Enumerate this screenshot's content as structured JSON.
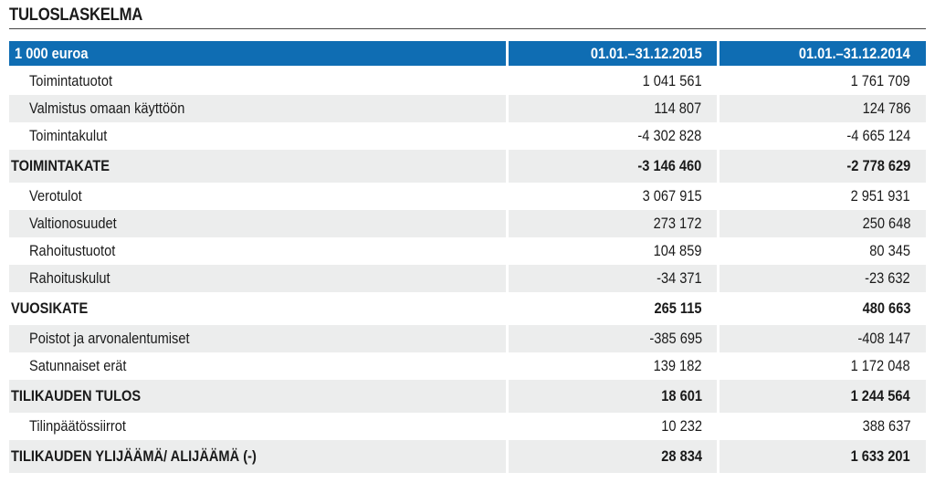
{
  "title": "TULOSLASKELMA",
  "header": {
    "label": "1 000 euroa",
    "col1": "01.01.–31.12.2015",
    "col2": "01.01.–31.12.2014"
  },
  "rows": [
    {
      "label": "Toimintatuotot",
      "v2015": "1 041 561",
      "v2014": "1 761 709"
    },
    {
      "label": "Valmistus omaan käyttöön",
      "v2015": "114 807",
      "v2014": "124 786"
    },
    {
      "label": "Toimintakulut",
      "v2015": "-4 302 828",
      "v2014": "-4 665 124"
    },
    {
      "label": "TOIMINTAKATE",
      "v2015": "-3 146 460",
      "v2014": "-2 778 629"
    },
    {
      "label": "Verotulot",
      "v2015": "3 067 915",
      "v2014": "2 951 931"
    },
    {
      "label": "Valtionosuudet",
      "v2015": "273 172",
      "v2014": "250 648"
    },
    {
      "label": "Rahoitustuotot",
      "v2015": "104 859",
      "v2014": "80 345"
    },
    {
      "label": "Rahoituskulut",
      "v2015": "-34 371",
      "v2014": "-23 632"
    },
    {
      "label": "VUOSIKATE",
      "v2015": "265 115",
      "v2014": "480 663"
    },
    {
      "label": "Poistot ja arvonalentumiset",
      "v2015": "-385 695",
      "v2014": "-408 147"
    },
    {
      "label": "Satunnaiset erät",
      "v2015": "139 182",
      "v2014": "1 172 048"
    },
    {
      "label": "TILIKAUDEN TULOS",
      "v2015": "18 601",
      "v2014": "1 244 564"
    },
    {
      "label": "Tilinpäätössiirrot",
      "v2015": "10 232",
      "v2014": "388 637"
    },
    {
      "label": "TILIKAUDEN YLIJÄÄMÄ/ ALIJÄÄMÄ (-)",
      "v2015": "28 834",
      "v2014": "1 633 201"
    }
  ],
  "colors": {
    "header_bg": "#0f6db3",
    "row_shade": "#eceded",
    "text": "#1a1a1a"
  }
}
